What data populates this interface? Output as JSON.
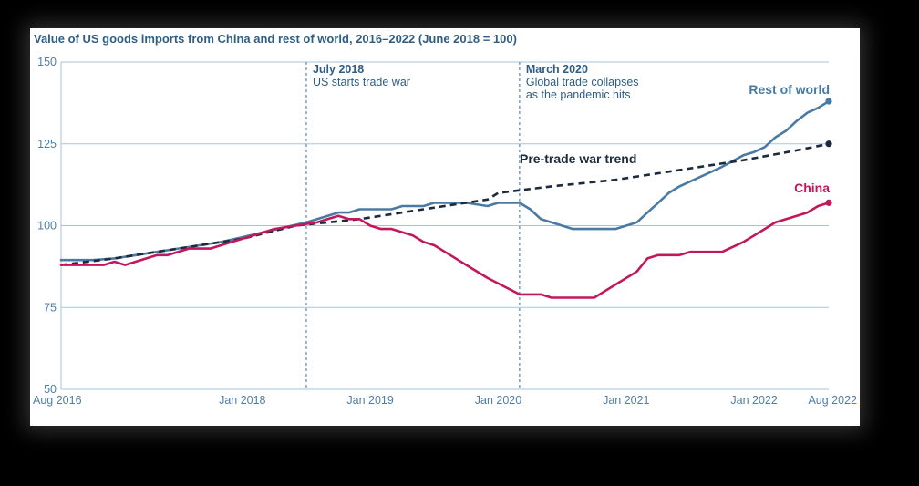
{
  "chart_data": {
    "type": "line",
    "title": "Value of US goods imports from China and rest of world, 2016–2022 (June 2018 = 100)",
    "ylim": [
      50,
      150
    ],
    "yticks": [
      50,
      75,
      100,
      125,
      150
    ],
    "xticks": [
      "Aug 2016",
      "Jan 2018",
      "Jan 2019",
      "Jan 2020",
      "Jan 2021",
      "Jan 2022",
      "Aug 2022"
    ],
    "xlim": [
      "2016-08",
      "2022-08"
    ],
    "grid": "horizontal",
    "annotations": [
      {
        "date": "2018-07",
        "heading": "July 2018",
        "text": [
          "US starts trade war"
        ]
      },
      {
        "date": "2020-03",
        "heading": "March 2020",
        "text": [
          "Global trade collapses",
          "as the pandemic hits"
        ]
      }
    ],
    "series": [
      {
        "name": "Rest of world",
        "color": "#4a7aa3",
        "style": "solid",
        "points": [
          [
            "2016-08",
            89.5
          ],
          [
            "2016-11",
            89.5
          ],
          [
            "2017-01",
            90
          ],
          [
            "2017-03",
            91
          ],
          [
            "2017-05",
            92
          ],
          [
            "2017-07",
            93
          ],
          [
            "2017-09",
            94
          ],
          [
            "2017-11",
            95
          ],
          [
            "2018-01",
            96.5
          ],
          [
            "2018-03",
            98
          ],
          [
            "2018-05",
            99.5
          ],
          [
            "2018-07",
            101
          ],
          [
            "2018-09",
            103
          ],
          [
            "2018-10",
            104
          ],
          [
            "2018-11",
            104
          ],
          [
            "2018-12",
            105
          ],
          [
            "2019-03",
            105
          ],
          [
            "2019-04",
            106
          ],
          [
            "2019-06",
            106
          ],
          [
            "2019-07",
            107
          ],
          [
            "2019-10",
            107
          ],
          [
            "2019-12",
            106
          ],
          [
            "2020-01",
            107
          ],
          [
            "2020-03",
            107
          ],
          [
            "2020-04",
            105
          ],
          [
            "2020-05",
            102
          ],
          [
            "2020-06",
            101
          ],
          [
            "2020-08",
            99
          ],
          [
            "2020-11",
            99
          ],
          [
            "2020-12",
            99
          ],
          [
            "2021-01",
            100
          ],
          [
            "2021-02",
            101
          ],
          [
            "2021-03",
            104
          ],
          [
            "2021-04",
            107
          ],
          [
            "2021-05",
            110
          ],
          [
            "2021-06",
            112
          ],
          [
            "2021-08",
            115
          ],
          [
            "2021-10",
            118
          ],
          [
            "2021-12",
            121.5
          ],
          [
            "2022-01",
            122.5
          ],
          [
            "2022-02",
            124
          ],
          [
            "2022-03",
            127
          ],
          [
            "2022-04",
            129
          ],
          [
            "2022-05",
            132
          ],
          [
            "2022-06",
            134.5
          ],
          [
            "2022-07",
            136
          ],
          [
            "2022-08",
            138
          ]
        ]
      },
      {
        "name": "Pre-trade war trend",
        "color": "#1b2a3c",
        "style": "dashed",
        "points": [
          [
            "2016-08",
            88
          ],
          [
            "2017-01",
            90
          ],
          [
            "2017-06",
            92.5
          ],
          [
            "2018-01",
            96
          ],
          [
            "2018-06",
            100
          ],
          [
            "2018-12",
            102
          ],
          [
            "2019-06",
            105
          ],
          [
            "2019-12",
            108
          ],
          [
            "2020-01",
            110
          ],
          [
            "2020-06",
            112
          ],
          [
            "2020-12",
            114
          ],
          [
            "2021-06",
            117
          ],
          [
            "2021-12",
            120
          ],
          [
            "2022-05",
            123
          ],
          [
            "2022-08",
            125
          ]
        ]
      },
      {
        "name": "China",
        "color": "#c2185b",
        "style": "solid",
        "points": [
          [
            "2016-08",
            88
          ],
          [
            "2016-09",
            88
          ],
          [
            "2016-12",
            88
          ],
          [
            "2017-01",
            89
          ],
          [
            "2017-02",
            88
          ],
          [
            "2017-03",
            89
          ],
          [
            "2017-05",
            91
          ],
          [
            "2017-06",
            91
          ],
          [
            "2017-08",
            93
          ],
          [
            "2017-10",
            93
          ],
          [
            "2017-12",
            95
          ],
          [
            "2018-03",
            98
          ],
          [
            "2018-04",
            99
          ],
          [
            "2018-06",
            100
          ],
          [
            "2018-08",
            101
          ],
          [
            "2018-09",
            102
          ],
          [
            "2018-10",
            103
          ],
          [
            "2018-11",
            102
          ],
          [
            "2018-12",
            102
          ],
          [
            "2019-01",
            100
          ],
          [
            "2019-02",
            99
          ],
          [
            "2019-03",
            99
          ],
          [
            "2019-05",
            97
          ],
          [
            "2019-06",
            95
          ],
          [
            "2019-07",
            94
          ],
          [
            "2019-08",
            92
          ],
          [
            "2019-10",
            88
          ],
          [
            "2019-12",
            84
          ],
          [
            "2020-03",
            79
          ],
          [
            "2020-05",
            79
          ],
          [
            "2020-06",
            78
          ],
          [
            "2020-10",
            78
          ],
          [
            "2020-11",
            80
          ],
          [
            "2020-12",
            82
          ],
          [
            "2021-02",
            86
          ],
          [
            "2021-03",
            90
          ],
          [
            "2021-04",
            91
          ],
          [
            "2021-06",
            91
          ],
          [
            "2021-07",
            92
          ],
          [
            "2021-10",
            92
          ],
          [
            "2021-12",
            95
          ],
          [
            "2022-01",
            97
          ],
          [
            "2022-02",
            99
          ],
          [
            "2022-03",
            101
          ],
          [
            "2022-05",
            103
          ],
          [
            "2022-06",
            104
          ],
          [
            "2022-07",
            106
          ],
          [
            "2022-08",
            107
          ]
        ]
      }
    ]
  }
}
